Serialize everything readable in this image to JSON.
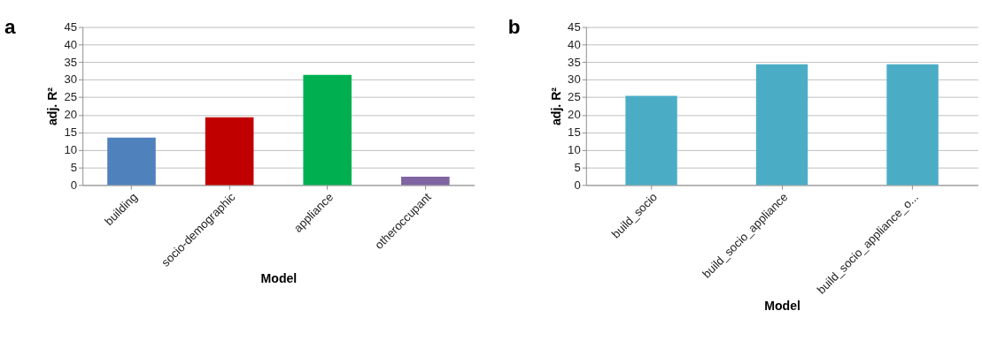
{
  "chart_data": [
    {
      "type": "bar",
      "title": "a",
      "xlabel": "Model",
      "ylabel": "adj. R²",
      "categories": [
        "building",
        "socio-demographic",
        "appliance",
        "otheroccupant"
      ],
      "values": [
        13.5,
        19.3,
        31.4,
        2.4
      ],
      "colors": [
        "#4f81bd",
        "#c00000",
        "#00b050",
        "#8064a2"
      ],
      "ylim": [
        0,
        45
      ],
      "yticks": [
        0,
        5,
        10,
        15,
        20,
        25,
        30,
        35,
        40,
        45
      ],
      "grid": "y",
      "legend": false
    },
    {
      "type": "bar",
      "title": "b",
      "xlabel": "Model",
      "ylabel": "adj. R²",
      "categories": [
        "build_socio",
        "build_socio_appliance",
        "build_socio_appliance_o..."
      ],
      "values": [
        25.4,
        34.4,
        34.4
      ],
      "color": "#4bacc6",
      "ylim": [
        0,
        45
      ],
      "yticks": [
        0,
        5,
        10,
        15,
        20,
        25,
        30,
        35,
        40,
        45
      ],
      "grid": "y",
      "legend": false
    }
  ]
}
